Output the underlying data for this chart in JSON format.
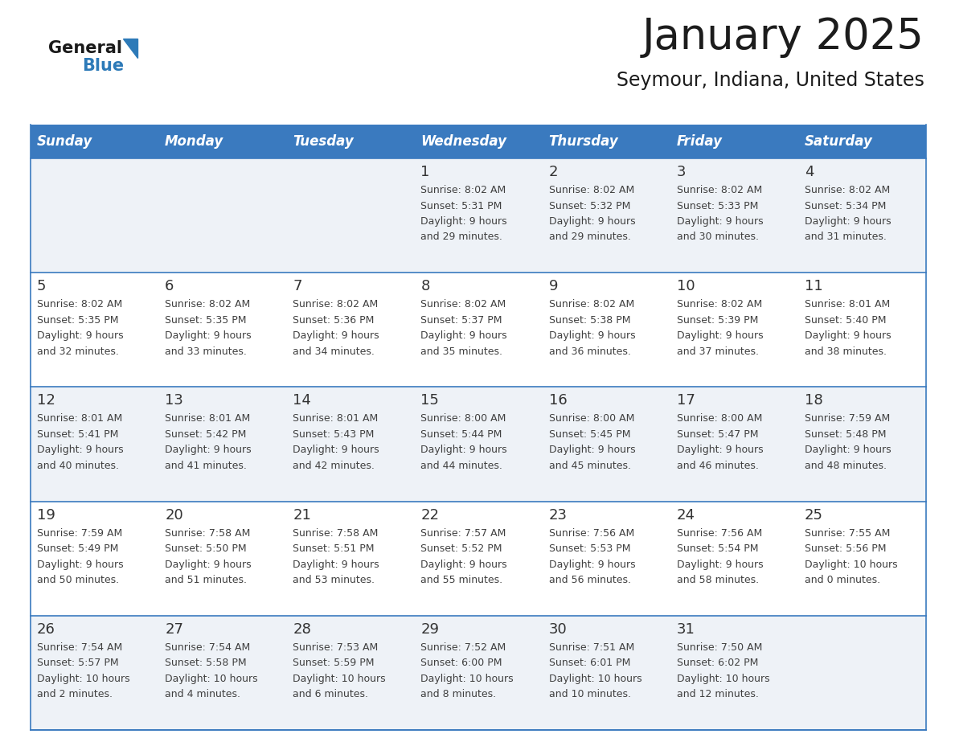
{
  "title": "January 2025",
  "subtitle": "Seymour, Indiana, United States",
  "header_color": "#3a7abf",
  "header_text_color": "#ffffff",
  "row_bg_even": "#eef2f7",
  "row_bg_odd": "#ffffff",
  "border_color": "#3a7abf",
  "text_color": "#404040",
  "day_num_color": "#333333",
  "logo_black": "#1a1a1a",
  "logo_blue": "#2d7ab8",
  "triangle_color": "#2d7ab8",
  "days_of_week": [
    "Sunday",
    "Monday",
    "Tuesday",
    "Wednesday",
    "Thursday",
    "Friday",
    "Saturday"
  ],
  "weeks": [
    [
      {
        "day": "",
        "sunrise": "",
        "sunset": "",
        "daylight": ""
      },
      {
        "day": "",
        "sunrise": "",
        "sunset": "",
        "daylight": ""
      },
      {
        "day": "",
        "sunrise": "",
        "sunset": "",
        "daylight": ""
      },
      {
        "day": "1",
        "sunrise": "8:02 AM",
        "sunset": "5:31 PM",
        "daylight": "9 hours and 29 minutes."
      },
      {
        "day": "2",
        "sunrise": "8:02 AM",
        "sunset": "5:32 PM",
        "daylight": "9 hours and 29 minutes."
      },
      {
        "day": "3",
        "sunrise": "8:02 AM",
        "sunset": "5:33 PM",
        "daylight": "9 hours and 30 minutes."
      },
      {
        "day": "4",
        "sunrise": "8:02 AM",
        "sunset": "5:34 PM",
        "daylight": "9 hours and 31 minutes."
      }
    ],
    [
      {
        "day": "5",
        "sunrise": "8:02 AM",
        "sunset": "5:35 PM",
        "daylight": "9 hours and 32 minutes."
      },
      {
        "day": "6",
        "sunrise": "8:02 AM",
        "sunset": "5:35 PM",
        "daylight": "9 hours and 33 minutes."
      },
      {
        "day": "7",
        "sunrise": "8:02 AM",
        "sunset": "5:36 PM",
        "daylight": "9 hours and 34 minutes."
      },
      {
        "day": "8",
        "sunrise": "8:02 AM",
        "sunset": "5:37 PM",
        "daylight": "9 hours and 35 minutes."
      },
      {
        "day": "9",
        "sunrise": "8:02 AM",
        "sunset": "5:38 PM",
        "daylight": "9 hours and 36 minutes."
      },
      {
        "day": "10",
        "sunrise": "8:02 AM",
        "sunset": "5:39 PM",
        "daylight": "9 hours and 37 minutes."
      },
      {
        "day": "11",
        "sunrise": "8:01 AM",
        "sunset": "5:40 PM",
        "daylight": "9 hours and 38 minutes."
      }
    ],
    [
      {
        "day": "12",
        "sunrise": "8:01 AM",
        "sunset": "5:41 PM",
        "daylight": "9 hours and 40 minutes."
      },
      {
        "day": "13",
        "sunrise": "8:01 AM",
        "sunset": "5:42 PM",
        "daylight": "9 hours and 41 minutes."
      },
      {
        "day": "14",
        "sunrise": "8:01 AM",
        "sunset": "5:43 PM",
        "daylight": "9 hours and 42 minutes."
      },
      {
        "day": "15",
        "sunrise": "8:00 AM",
        "sunset": "5:44 PM",
        "daylight": "9 hours and 44 minutes."
      },
      {
        "day": "16",
        "sunrise": "8:00 AM",
        "sunset": "5:45 PM",
        "daylight": "9 hours and 45 minutes."
      },
      {
        "day": "17",
        "sunrise": "8:00 AM",
        "sunset": "5:47 PM",
        "daylight": "9 hours and 46 minutes."
      },
      {
        "day": "18",
        "sunrise": "7:59 AM",
        "sunset": "5:48 PM",
        "daylight": "9 hours and 48 minutes."
      }
    ],
    [
      {
        "day": "19",
        "sunrise": "7:59 AM",
        "sunset": "5:49 PM",
        "daylight": "9 hours and 50 minutes."
      },
      {
        "day": "20",
        "sunrise": "7:58 AM",
        "sunset": "5:50 PM",
        "daylight": "9 hours and 51 minutes."
      },
      {
        "day": "21",
        "sunrise": "7:58 AM",
        "sunset": "5:51 PM",
        "daylight": "9 hours and 53 minutes."
      },
      {
        "day": "22",
        "sunrise": "7:57 AM",
        "sunset": "5:52 PM",
        "daylight": "9 hours and 55 minutes."
      },
      {
        "day": "23",
        "sunrise": "7:56 AM",
        "sunset": "5:53 PM",
        "daylight": "9 hours and 56 minutes."
      },
      {
        "day": "24",
        "sunrise": "7:56 AM",
        "sunset": "5:54 PM",
        "daylight": "9 hours and 58 minutes."
      },
      {
        "day": "25",
        "sunrise": "7:55 AM",
        "sunset": "5:56 PM",
        "daylight": "10 hours and 0 minutes."
      }
    ],
    [
      {
        "day": "26",
        "sunrise": "7:54 AM",
        "sunset": "5:57 PM",
        "daylight": "10 hours and 2 minutes."
      },
      {
        "day": "27",
        "sunrise": "7:54 AM",
        "sunset": "5:58 PM",
        "daylight": "10 hours and 4 minutes."
      },
      {
        "day": "28",
        "sunrise": "7:53 AM",
        "sunset": "5:59 PM",
        "daylight": "10 hours and 6 minutes."
      },
      {
        "day": "29",
        "sunrise": "7:52 AM",
        "sunset": "6:00 PM",
        "daylight": "10 hours and 8 minutes."
      },
      {
        "day": "30",
        "sunrise": "7:51 AM",
        "sunset": "6:01 PM",
        "daylight": "10 hours and 10 minutes."
      },
      {
        "day": "31",
        "sunrise": "7:50 AM",
        "sunset": "6:02 PM",
        "daylight": "10 hours and 12 minutes."
      },
      {
        "day": "",
        "sunrise": "",
        "sunset": "",
        "daylight": ""
      }
    ]
  ]
}
